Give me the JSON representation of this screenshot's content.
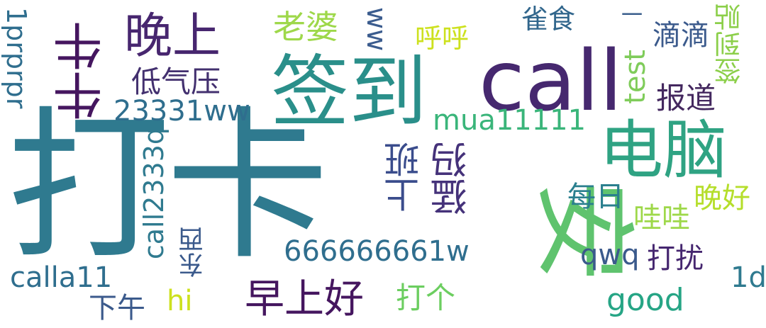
{
  "words": [
    {
      "id": "daka",
      "text": "打卡",
      "color": "#2f7a8f"
    },
    {
      "id": "call",
      "text": "call",
      "color": "#46286f"
    },
    {
      "id": "qiandao",
      "text": "签到",
      "color": "#2a8f8a"
    },
    {
      "id": "diannao",
      "text": "电脑",
      "color": "#2fa383"
    },
    {
      "id": "anbig",
      "text": "安",
      "color": "#5fc36e"
    },
    {
      "id": "wanshang",
      "text": "晚上",
      "color": "#47266f"
    },
    {
      "id": "niuniu",
      "text": "牛牛",
      "color": "#45165f"
    },
    {
      "id": "laopo",
      "text": "老婆",
      "color": "#9ed84a"
    },
    {
      "id": "ww",
      "text": "ww",
      "color": "#3b5c8e"
    },
    {
      "id": "huhu",
      "text": "呼呼",
      "color": "#cde11e"
    },
    {
      "id": "queshi",
      "text": "雀食",
      "color": "#31668c"
    },
    {
      "id": "yi",
      "text": "一",
      "color": "#3a5e8c"
    },
    {
      "id": "didi",
      "text": "滴滴",
      "color": "#3b5a8c"
    },
    {
      "id": "qiandaotie",
      "text": "签到贴",
      "color": "#8ccf4a"
    },
    {
      "id": "diqiya",
      "text": "低气压",
      "color": "#43306f"
    },
    {
      "id": "n23331ww",
      "text": "23331ww",
      "color": "#2f6e8e"
    },
    {
      "id": "test",
      "text": "test",
      "color": "#7fcc5a"
    },
    {
      "id": "baodao",
      "text": "报道",
      "color": "#44285f"
    },
    {
      "id": "prpr",
      "text": "1prprpr",
      "color": "#2f6e8e"
    },
    {
      "id": "mua",
      "text": "mua11111",
      "color": "#3ab57a"
    },
    {
      "id": "shangban",
      "text": "上班",
      "color": "#3a4c8c"
    },
    {
      "id": "mengma",
      "text": "猛犸",
      "color": "#45327a"
    },
    {
      "id": "call2333q",
      "text": "call2333q",
      "color": "#2f7a8f"
    },
    {
      "id": "meiri",
      "text": "每日",
      "color": "#2a7f8e"
    },
    {
      "id": "wanhao",
      "text": "晚好",
      "color": "#b5de2b"
    },
    {
      "id": "wawa",
      "text": "哇哇",
      "color": "#9ed84a"
    },
    {
      "id": "n666",
      "text": "666666661w",
      "color": "#2f6e8e"
    },
    {
      "id": "qwq",
      "text": "qwq",
      "color": "#3b5a8c"
    },
    {
      "id": "darao",
      "text": "打扰",
      "color": "#45266f"
    },
    {
      "id": "dongxi",
      "text": "东西",
      "color": "#3b5a8c"
    },
    {
      "id": "calla11",
      "text": "calla11",
      "color": "#2f6e8e"
    },
    {
      "id": "onod",
      "text": "1d",
      "color": "#2f7a8f"
    },
    {
      "id": "zaoshanghao",
      "text": "早上好",
      "color": "#45165f"
    },
    {
      "id": "dage",
      "text": "打个",
      "color": "#6cce60"
    },
    {
      "id": "good",
      "text": "good",
      "color": "#26a585"
    },
    {
      "id": "xiawu",
      "text": "下午",
      "color": "#3b5a8c"
    },
    {
      "id": "hi",
      "text": "hi",
      "color": "#cde11e"
    }
  ]
}
